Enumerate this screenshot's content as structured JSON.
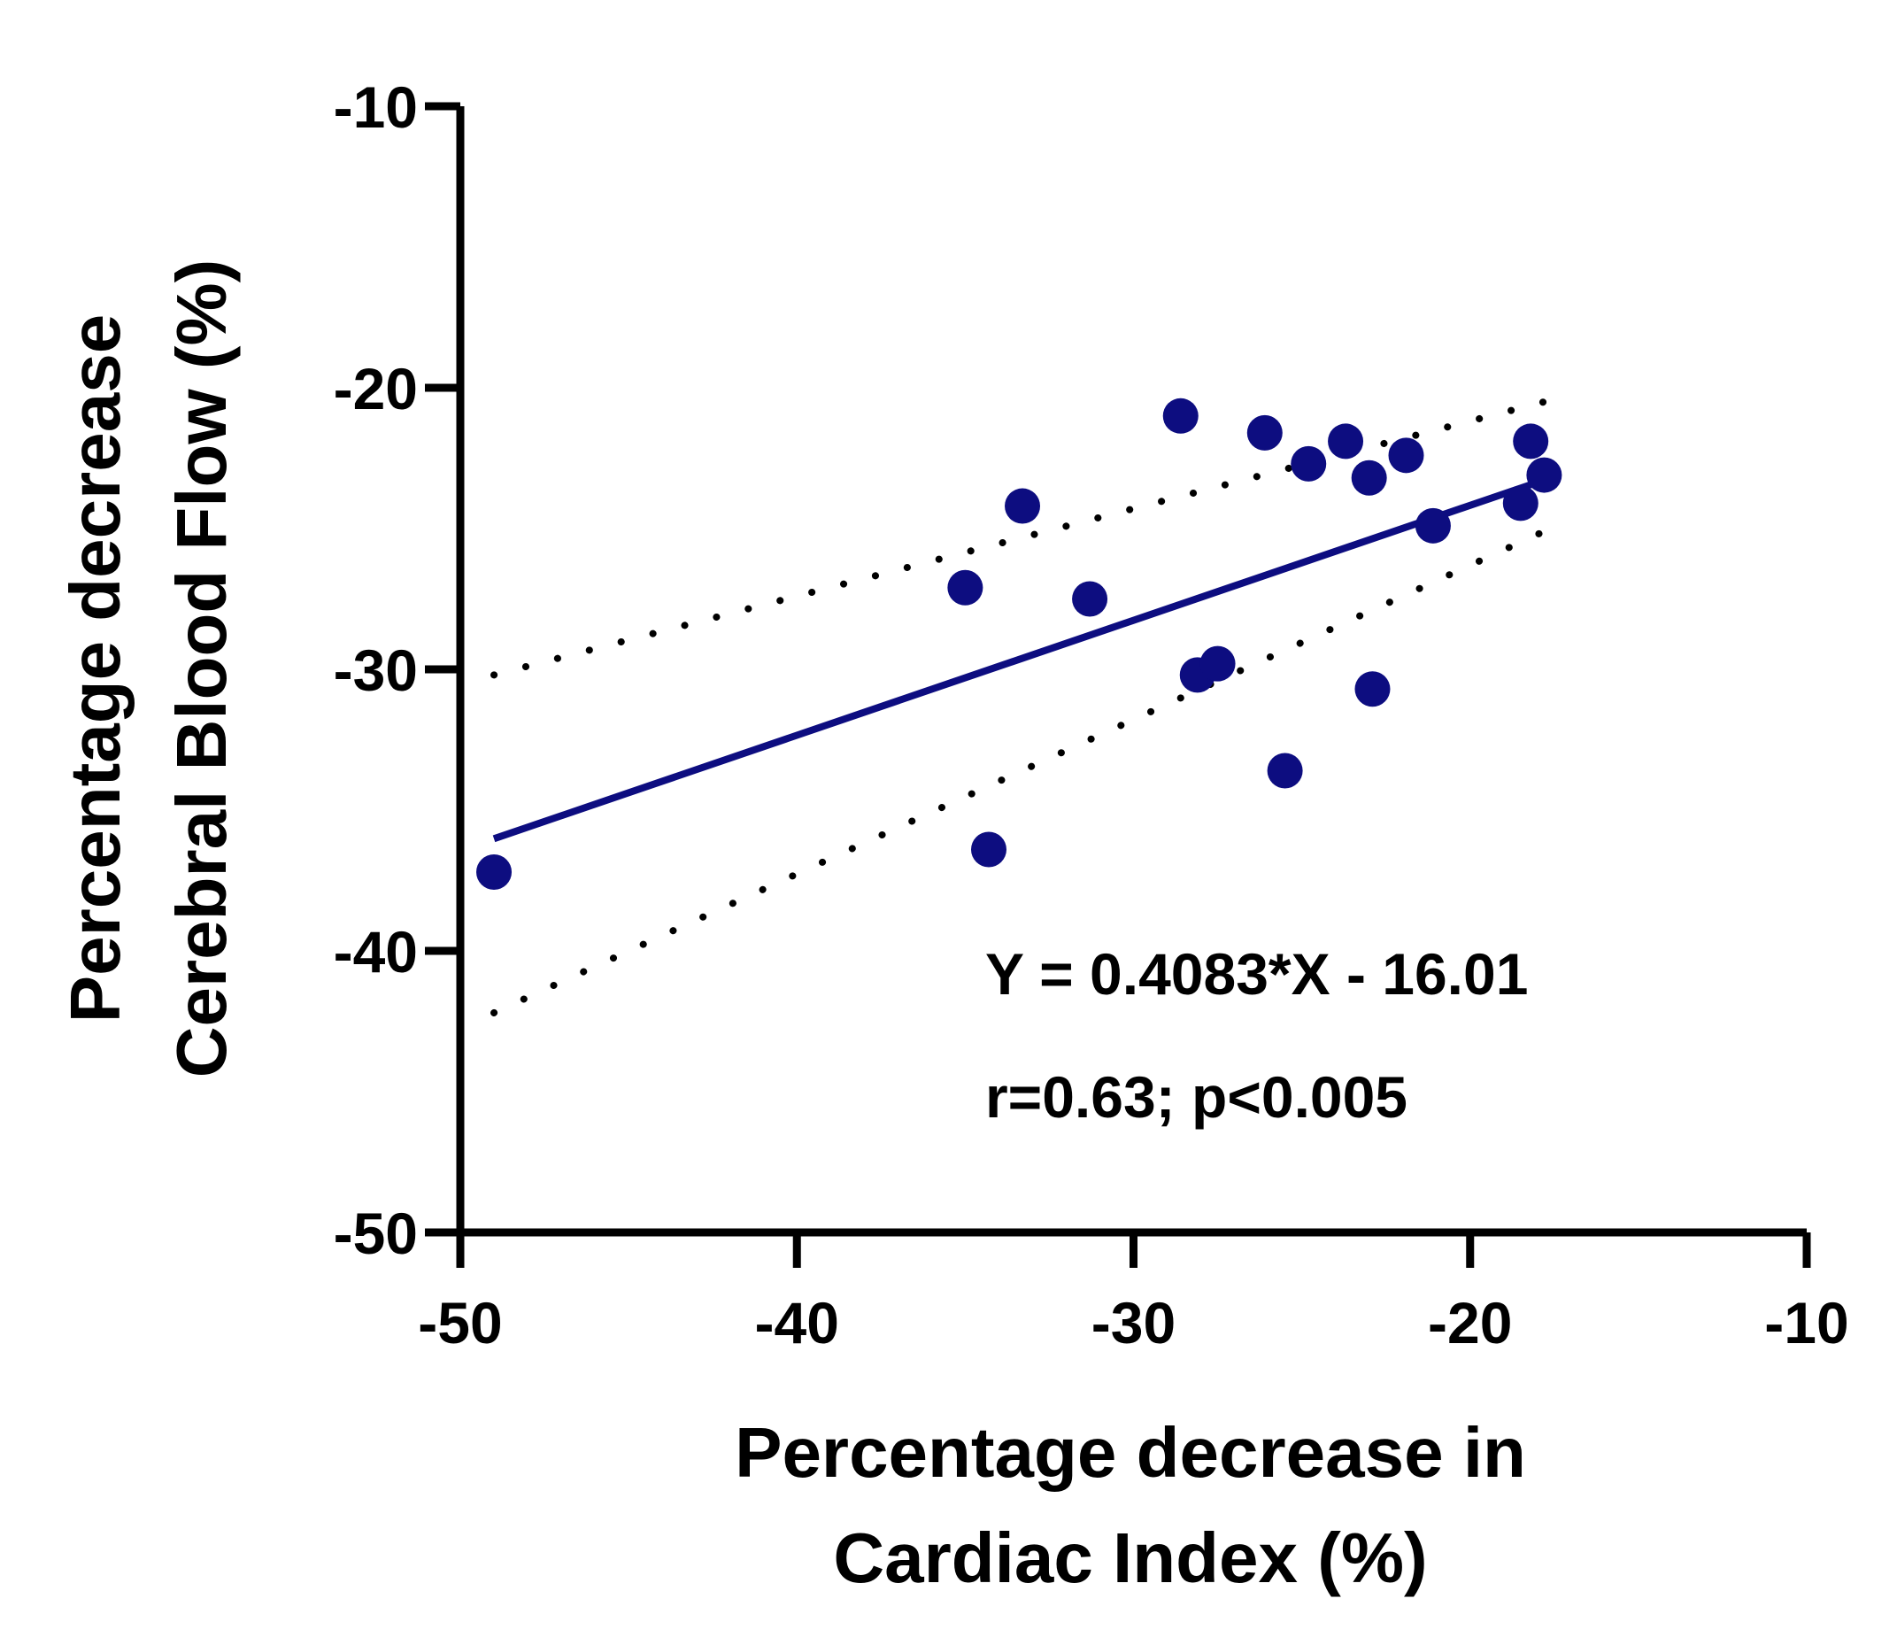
{
  "chart_data": {
    "type": "scatter",
    "title": "",
    "xlabel": [
      "Percentage decrease in",
      "Cardiac Index (%)"
    ],
    "ylabel": [
      "Percentage decrease",
      "Cerebral Blood Flow  (%)"
    ],
    "xlim": [
      -50,
      -10
    ],
    "ylim": [
      -50,
      -10
    ],
    "xticks": [
      -50,
      -40,
      -30,
      -20,
      -10
    ],
    "yticks": [
      -10,
      -20,
      -30,
      -40,
      -50
    ],
    "xtick_labels": [
      "-50",
      "-40",
      "-30",
      "-20",
      "-10"
    ],
    "ytick_labels": [
      "-10",
      "-20",
      "-30",
      "-40",
      "-50"
    ],
    "grid": false,
    "marker_color": "#0d0d80",
    "line_color": "#0d0d80",
    "points": [
      {
        "x": -49.0,
        "y": -37.2
      },
      {
        "x": -35.0,
        "y": -27.1
      },
      {
        "x": -34.3,
        "y": -36.4
      },
      {
        "x": -33.3,
        "y": -24.2
      },
      {
        "x": -31.3,
        "y": -27.5
      },
      {
        "x": -28.6,
        "y": -21.0
      },
      {
        "x": -28.1,
        "y": -30.2
      },
      {
        "x": -27.5,
        "y": -29.8
      },
      {
        "x": -26.1,
        "y": -21.6
      },
      {
        "x": -25.5,
        "y": -33.6
      },
      {
        "x": -24.8,
        "y": -22.7
      },
      {
        "x": -23.7,
        "y": -21.9
      },
      {
        "x": -23.0,
        "y": -23.2
      },
      {
        "x": -22.9,
        "y": -30.7
      },
      {
        "x": -21.9,
        "y": -22.4
      },
      {
        "x": -21.1,
        "y": -24.9
      },
      {
        "x": -18.5,
        "y": -24.1
      },
      {
        "x": -18.2,
        "y": -21.9
      },
      {
        "x": -17.8,
        "y": -23.1
      }
    ],
    "regression": {
      "slope": 0.4083,
      "intercept": -16.01,
      "x_range": [
        -49.0,
        -17.8
      ]
    },
    "confidence_band": {
      "upper": [
        {
          "x": -49.0,
          "y": -30.2
        },
        {
          "x": -17.8,
          "y": -20.5
        }
      ],
      "lower": [
        {
          "x": -49.0,
          "y": -42.2
        },
        {
          "x": -17.8,
          "y": -25.1
        }
      ]
    },
    "annotations": {
      "equation": "Y = 0.4083*X - 16.01",
      "stats": "r=0.63; p<0.005"
    }
  }
}
